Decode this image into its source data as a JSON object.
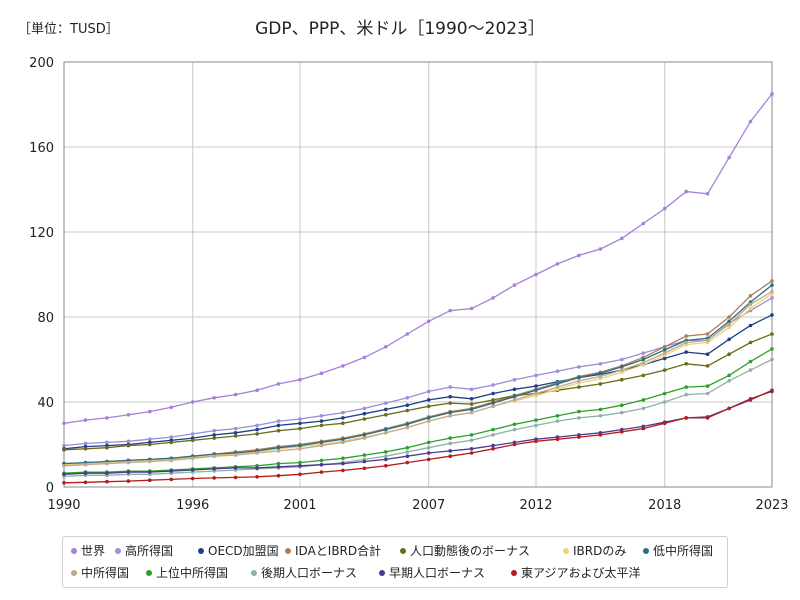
{
  "unit_label": "［単位：TUSD］",
  "chart_data": {
    "type": "line",
    "title": "GDP、PPP、米ドル［1990～2023］",
    "xlabel": "",
    "ylabel": "",
    "xlim": [
      1990,
      2023
    ],
    "ylim": [
      0,
      200
    ],
    "x_ticks": [
      1990,
      1996,
      2001,
      2007,
      2012,
      2018,
      2023
    ],
    "y_ticks": [
      0,
      40,
      80,
      120,
      160,
      200
    ],
    "grid": true,
    "legend_position": "bottom",
    "x": [
      1990,
      1991,
      1992,
      1993,
      1994,
      1995,
      1996,
      1997,
      1998,
      1999,
      2000,
      2001,
      2002,
      2003,
      2004,
      2005,
      2006,
      2007,
      2008,
      2009,
      2010,
      2011,
      2012,
      2013,
      2014,
      2015,
      2016,
      2017,
      2018,
      2019,
      2020,
      2021,
      2022,
      2023
    ],
    "series": [
      {
        "name": "世界",
        "color": "#a77fd9",
        "values": [
          30,
          31.5,
          32.5,
          34,
          35.5,
          37.5,
          40,
          42,
          43.5,
          45.5,
          48.5,
          50.5,
          53.5,
          57,
          61,
          66,
          72,
          78,
          83,
          84,
          89,
          95,
          100,
          105,
          109,
          112,
          117,
          124,
          131,
          139,
          138,
          155,
          172,
          185
        ]
      },
      {
        "name": "高所得国",
        "color": "#9b8fd6",
        "values": [
          19.5,
          20.5,
          21,
          21.5,
          22.5,
          23.5,
          25,
          26.5,
          27.5,
          29,
          31,
          32,
          33.5,
          35,
          37,
          39.5,
          42,
          45,
          47,
          46,
          48,
          50.5,
          52.5,
          54.5,
          56.5,
          58,
          60,
          63,
          66,
          69,
          69,
          77,
          83,
          89
        ]
      },
      {
        "name": "OECD加盟国",
        "color": "#1f3f87",
        "values": [
          18,
          19,
          19.5,
          20,
          21,
          22,
          23,
          24.5,
          25.5,
          27,
          29,
          30,
          31,
          32.5,
          34.5,
          36.5,
          38.5,
          41,
          42.5,
          41.5,
          44,
          46,
          47.5,
          49.5,
          51.5,
          53,
          55,
          57.5,
          60.5,
          63.5,
          62.5,
          69.5,
          76,
          81
        ]
      },
      {
        "name": "IDAとIBRD合計",
        "color": "#a97f5e",
        "values": [
          11,
          11.5,
          12,
          12.5,
          13,
          13.5,
          14.5,
          15.5,
          16.5,
          17.5,
          19,
          20,
          21.5,
          23,
          25,
          27.5,
          30,
          33,
          35.5,
          37,
          40,
          43,
          46,
          49,
          52,
          54,
          57,
          61,
          66,
          71,
          72,
          80,
          90,
          97
        ]
      },
      {
        "name": "人口動態後のボーナス",
        "color": "#6b6b19",
        "values": [
          17.5,
          18,
          18.5,
          19.5,
          20,
          21,
          22,
          23,
          24,
          25,
          26.5,
          27.5,
          29,
          30,
          32,
          34,
          36,
          38,
          39.5,
          39,
          41,
          43,
          44,
          45.5,
          47,
          48.5,
          50.5,
          52.5,
          55,
          58,
          57,
          62.5,
          68,
          72
        ]
      },
      {
        "name": "IBRDのみ",
        "color": "#ecd27b",
        "values": [
          10.5,
          11,
          11.5,
          12,
          12.5,
          13,
          14,
          15,
          15.5,
          16.5,
          18,
          19,
          20,
          21.5,
          23.5,
          25.5,
          28,
          31,
          33.5,
          35,
          38,
          40.5,
          43,
          46,
          49,
          51,
          54,
          57.5,
          62,
          67,
          68,
          75,
          84,
          91
        ]
      },
      {
        "name": "低中所得国",
        "color": "#2e6f7f",
        "values": [
          11,
          11.5,
          12,
          12.5,
          13,
          13.5,
          14.5,
          15.5,
          16,
          17,
          18.5,
          19.5,
          21,
          22.5,
          24.5,
          27,
          29.5,
          32.5,
          35,
          36.5,
          39.5,
          42.5,
          45.5,
          48.5,
          51.5,
          53.5,
          56.5,
          60,
          64.5,
          69,
          70,
          78,
          87,
          95
        ]
      },
      {
        "name": "中所得国",
        "color": "#c1a88e",
        "values": [
          10,
          10.5,
          11,
          11.5,
          12,
          12.5,
          13.5,
          14.5,
          15,
          16,
          17,
          18,
          19.5,
          21,
          23,
          25.5,
          28,
          31,
          33.5,
          35,
          38,
          41,
          44,
          47,
          50,
          52,
          55,
          58.5,
          63,
          68,
          69,
          76.5,
          86,
          92
        ]
      },
      {
        "name": "上位中所得国",
        "color": "#2ca02c",
        "values": [
          6.5,
          7,
          7,
          7.5,
          7.5,
          8,
          8.5,
          9,
          9.5,
          10,
          11,
          11.5,
          12.5,
          13.5,
          15,
          16.5,
          18.5,
          21,
          23,
          24.5,
          27,
          29.5,
          31.5,
          33.5,
          35.5,
          36.5,
          38.5,
          41,
          44,
          47,
          47.5,
          52.5,
          59,
          65
        ]
      },
      {
        "name": "後期人口ボーナス",
        "color": "#8fb0a8",
        "values": [
          5,
          5.5,
          5.5,
          6,
          6,
          6.5,
          7,
          7.5,
          8,
          8.5,
          9,
          9.5,
          10.5,
          11.5,
          13,
          14.5,
          16.5,
          18.5,
          20.5,
          22,
          24.5,
          27,
          29,
          31,
          32.5,
          33.5,
          35,
          37,
          40,
          43.5,
          44,
          50,
          55,
          60
        ]
      },
      {
        "name": "早期人口ボーナス",
        "color": "#4a3a8f",
        "values": [
          6,
          6.5,
          6.5,
          7,
          7,
          7.5,
          8,
          8.5,
          9,
          9,
          9.5,
          10,
          10.5,
          11,
          12,
          13,
          14.5,
          16,
          17,
          18,
          19.5,
          21,
          22.5,
          23.5,
          24.5,
          25.5,
          27,
          28.5,
          30.5,
          32.5,
          33,
          37,
          41.5,
          45
        ]
      },
      {
        "name": "東アジアおよび太平洋",
        "color": "#b51c1c",
        "values": [
          2,
          2.2,
          2.5,
          2.8,
          3.2,
          3.6,
          4,
          4.3,
          4.5,
          4.8,
          5.3,
          6,
          7,
          7.8,
          8.8,
          10,
          11.5,
          13,
          14.5,
          16,
          18,
          20,
          21.5,
          22.5,
          23.5,
          24.5,
          26,
          27.5,
          30,
          32.5,
          32.5,
          37,
          41,
          45.5
        ]
      }
    ]
  }
}
